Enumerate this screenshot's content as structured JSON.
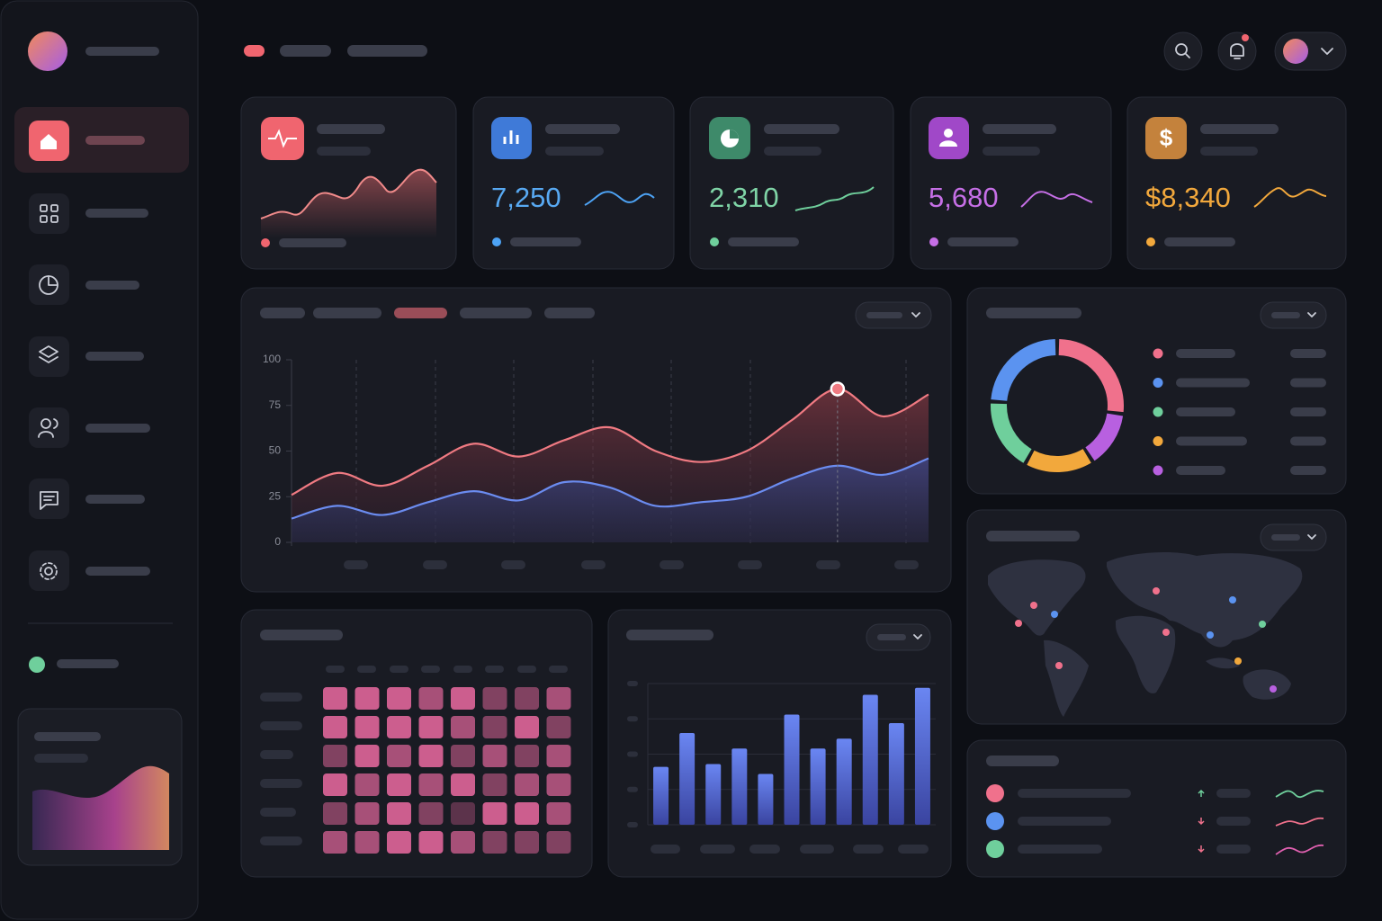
{
  "stats": [
    {
      "value": "7,250",
      "color": "#58a9f2"
    },
    {
      "value": "2,310",
      "color": "#7fd4a6"
    },
    {
      "value": "5,680",
      "color": "#c66fe6"
    },
    {
      "value": "$8,340",
      "color": "#f2a83c"
    }
  ],
  "chart_data": [
    {
      "type": "line",
      "ylim": [
        0,
        100
      ],
      "yticks": [
        0,
        25,
        50,
        75,
        100
      ],
      "highlight": 12,
      "series": [
        {
          "color": "#f07a82",
          "values": [
            26,
            38,
            31,
            42,
            54,
            47,
            56,
            63,
            50,
            44,
            50,
            67,
            84,
            69,
            81
          ]
        },
        {
          "color": "#6b8cf0",
          "values": [
            13,
            20,
            15,
            22,
            28,
            23,
            33,
            30,
            20,
            22,
            25,
            35,
            42,
            37,
            46
          ]
        }
      ]
    },
    {
      "type": "pie",
      "values": [
        27,
        24,
        18,
        17,
        14
      ],
      "colors": [
        "#f0718c",
        "#5b93f0",
        "#6fcf9c",
        "#f2a83c",
        "#b860e0"
      ]
    },
    {
      "type": "bar",
      "ylim": [
        0,
        100
      ],
      "yticks": [
        0,
        25,
        50,
        75,
        100
      ],
      "color": "#5a74e4",
      "values": [
        41,
        65,
        43,
        54,
        36,
        78,
        54,
        61,
        92,
        72,
        97
      ]
    },
    {
      "type": "heatmap",
      "color": "#e0669a",
      "vlim": [
        0,
        4
      ],
      "values": [
        [
          4,
          4,
          4,
          3,
          4,
          2,
          2,
          3
        ],
        [
          4,
          4,
          4,
          4,
          3,
          2,
          4,
          2
        ],
        [
          2,
          4,
          3,
          4,
          2,
          3,
          2,
          3
        ],
        [
          4,
          3,
          4,
          3,
          4,
          2,
          3,
          3
        ],
        [
          2,
          3,
          4,
          2,
          1,
          4,
          4,
          3
        ],
        [
          3,
          3,
          4,
          4,
          3,
          2,
          2,
          2
        ]
      ]
    }
  ]
}
